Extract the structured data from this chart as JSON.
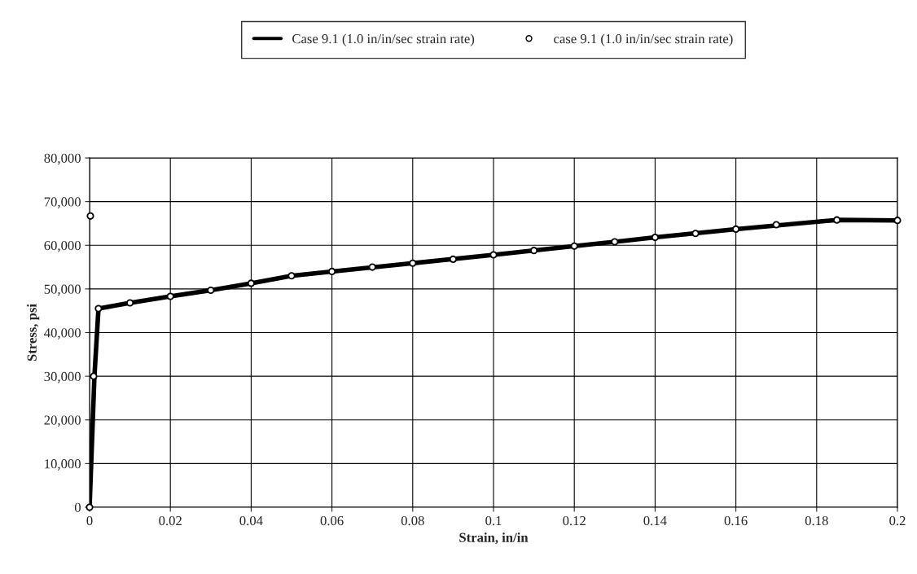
{
  "chart_data": {
    "type": "line",
    "xlabel": "Strain, in/in",
    "ylabel": "Stress, psi",
    "xlim": [
      0,
      0.2
    ],
    "xticks": [
      0,
      0.02,
      0.04,
      0.06,
      0.08,
      0.1,
      0.12,
      0.14,
      0.16,
      0.18,
      0.2
    ],
    "ylim": [
      0,
      80000
    ],
    "yticks": [
      {
        "value": 0,
        "label": "0"
      },
      {
        "value": 10000,
        "label": "10,000"
      },
      {
        "value": 20000,
        "label": "20,000"
      },
      {
        "value": 30000,
        "label": "30,000"
      },
      {
        "value": 40000,
        "label": "40,000"
      },
      {
        "value": 50000,
        "label": "50,000"
      },
      {
        "value": 60000,
        "label": "60,000"
      },
      {
        "value": 70000,
        "label": "70,000"
      },
      {
        "value": 80000,
        "label": "80,000"
      }
    ],
    "grid": true,
    "legend": "top",
    "series": [
      {
        "name": "Case 9.1 (1.0 in/in/sec strain rate)",
        "color": "#000000",
        "marker": "none",
        "line_style": "solid",
        "x": [
          0,
          0.0012,
          0.0022,
          0.01,
          0.02,
          0.03,
          0.04,
          0.05,
          0.06,
          0.08,
          0.1,
          0.12,
          0.14,
          0.16,
          0.185,
          0.2
        ],
        "values": [
          0,
          30000,
          45500,
          46800,
          48300,
          49700,
          51300,
          53000,
          54000,
          55900,
          57800,
          59800,
          61800,
          63700,
          65800,
          65700
        ]
      },
      {
        "name": "case 9.1 (1.0 in/in/sec strain rate)",
        "type": "scatter",
        "color": "#000000",
        "marker": "circle",
        "x": [
          0,
          0.0002,
          0.001,
          0.0022,
          0.01,
          0.02,
          0.03,
          0.04,
          0.05,
          0.06,
          0.07,
          0.08,
          0.09,
          0.1,
          0.11,
          0.12,
          0.13,
          0.14,
          0.15,
          0.16,
          0.17,
          0.185,
          0.2
        ],
        "values": [
          0,
          66700,
          30000,
          45500,
          46800,
          48300,
          49700,
          51300,
          53000,
          54000,
          55000,
          55900,
          56800,
          57800,
          58800,
          59800,
          60800,
          61800,
          62700,
          63700,
          64700,
          65800,
          65700
        ]
      }
    ]
  }
}
